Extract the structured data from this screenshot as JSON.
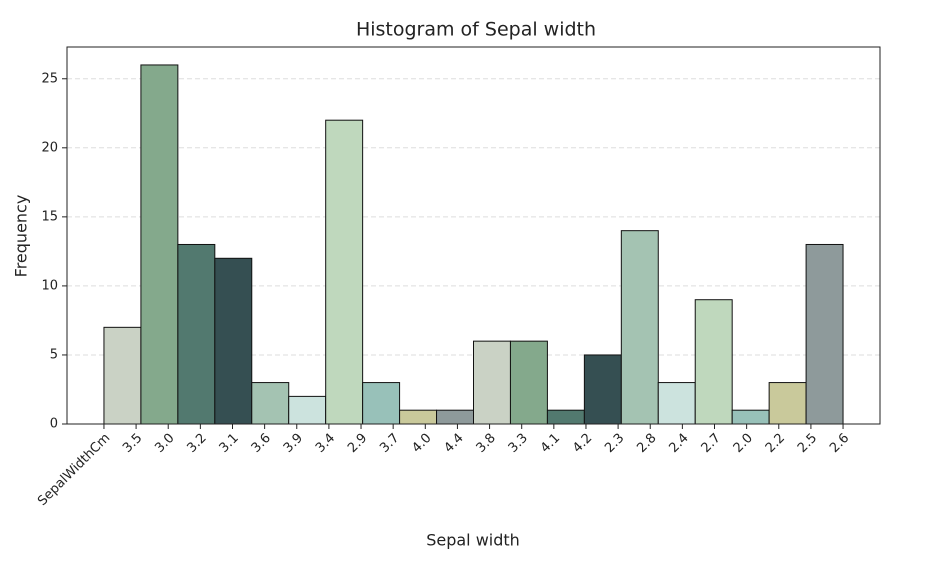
{
  "chart_data": {
    "type": "histogram",
    "title": "Histogram of Sepal width",
    "xlabel": "Sepal width",
    "ylabel": "Frequency",
    "bins": [
      0,
      1.15,
      2.3,
      3.45,
      4.6,
      5.75,
      6.9,
      8.05,
      9.2,
      10.35,
      11.5,
      12.65,
      13.8,
      14.95,
      16.1,
      17.25,
      18.4,
      19.55,
      20.7,
      21.85,
      23
    ],
    "counts": [
      7,
      26,
      13,
      12,
      3,
      2,
      22,
      3,
      1,
      1,
      6,
      6,
      1,
      5,
      14,
      3,
      9,
      1,
      3,
      13
    ],
    "colors": [
      "#cad2c5",
      "#84a98c",
      "#52796f",
      "#354f52",
      "#a4c3b2",
      "#cce3de",
      "#bfd8bd",
      "#98c1b9",
      "#c9c99b",
      "#8e9a9b"
    ],
    "xlim": [
      -1.15,
      24.15
    ],
    "ylim": [
      0,
      27.3
    ],
    "xticks": [
      {
        "value": 0,
        "label": "SepalWidthCm"
      },
      {
        "value": 1,
        "label": "3.5"
      },
      {
        "value": 2,
        "label": "3.0"
      },
      {
        "value": 3,
        "label": "3.2"
      },
      {
        "value": 4,
        "label": "3.1"
      },
      {
        "value": 5,
        "label": "3.6"
      },
      {
        "value": 6,
        "label": "3.9"
      },
      {
        "value": 7,
        "label": "3.4"
      },
      {
        "value": 8,
        "label": "2.9"
      },
      {
        "value": 9,
        "label": "3.7"
      },
      {
        "value": 10,
        "label": "4.0"
      },
      {
        "value": 11,
        "label": "4.4"
      },
      {
        "value": 12,
        "label": "3.8"
      },
      {
        "value": 13,
        "label": "3.3"
      },
      {
        "value": 14,
        "label": "4.1"
      },
      {
        "value": 15,
        "label": "4.2"
      },
      {
        "value": 16,
        "label": "2.3"
      },
      {
        "value": 17,
        "label": "2.8"
      },
      {
        "value": 18,
        "label": "2.4"
      },
      {
        "value": 19,
        "label": "2.7"
      },
      {
        "value": 20,
        "label": "2.0"
      },
      {
        "value": 21,
        "label": "2.2"
      },
      {
        "value": 22,
        "label": "2.5"
      },
      {
        "value": 23,
        "label": "2.6"
      }
    ],
    "yticks": [
      0,
      5,
      10,
      15,
      20,
      25
    ],
    "grid": true
  }
}
